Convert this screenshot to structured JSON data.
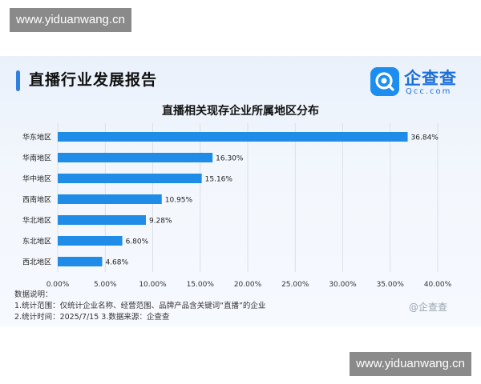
{
  "watermark": "www.yiduanwang.cn",
  "header": {
    "report_title": "直播行业发展报告",
    "brand_name": "企查查",
    "brand_domain": "Qcc.com",
    "accent_color": "#2f7fe0"
  },
  "chart_data": {
    "type": "bar",
    "orientation": "horizontal",
    "title": "直播相关现存企业所属地区分布",
    "categories": [
      "华东地区",
      "华南地区",
      "华中地区",
      "西南地区",
      "华北地区",
      "东北地区",
      "西北地区"
    ],
    "values": [
      36.84,
      16.3,
      15.16,
      10.95,
      9.28,
      6.8,
      4.68
    ],
    "value_labels": [
      "36.84%",
      "16.30%",
      "15.16%",
      "10.95%",
      "9.28%",
      "6.80%",
      "4.68%"
    ],
    "x_ticks": [
      "0.00%",
      "5.00%",
      "10.00%",
      "15.00%",
      "20.00%",
      "25.00%",
      "30.00%",
      "35.00%",
      "40.00%"
    ],
    "xlim": [
      0,
      40
    ],
    "grid": true,
    "bar_color": "#1f8ce8"
  },
  "notes": {
    "heading": "数据说明：",
    "line1": "1.统计范围：仅统计企业名称、经营范围、品牌产品含关键词“直播”的企业",
    "line2": "2.统计时间：2025/7/15  3.数据来源：企查查"
  },
  "image_watermark": "@企查查"
}
